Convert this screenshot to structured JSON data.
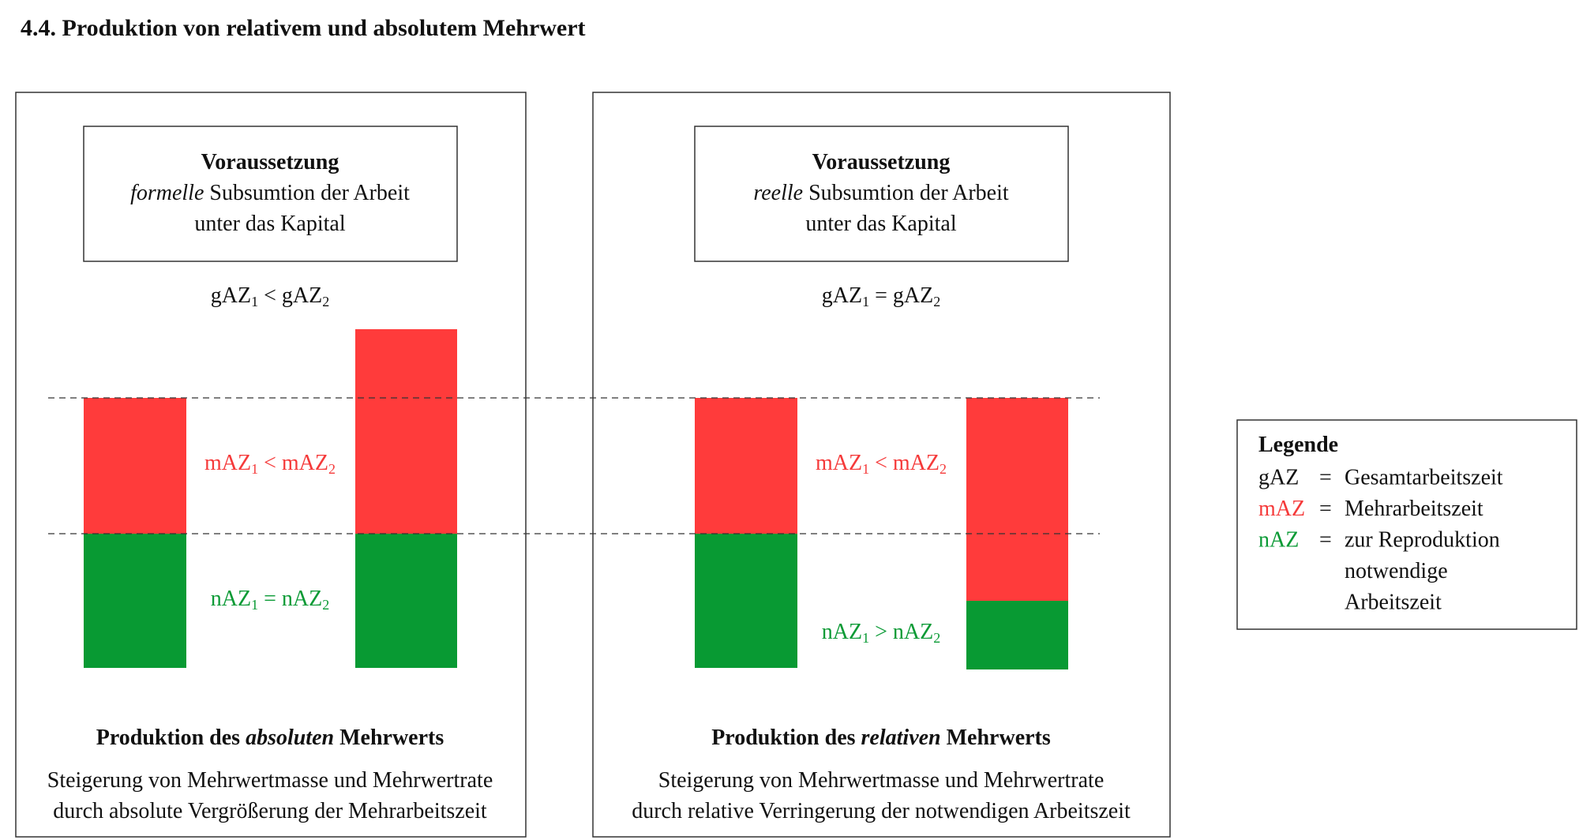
{
  "title": "4.4. Produktion von relativem und absolutem Mehrwert",
  "panels": [
    {
      "premise": {
        "heading": "Voraussetzung",
        "emphasis": "formelle",
        "line1_rest": "Subsumtion der Arbeit",
        "line2": "unter das Kapital"
      },
      "relations": {
        "total": {
          "left": "gAZ",
          "left_index": "1",
          "operator": "<",
          "right": "gAZ",
          "right_index": "2"
        },
        "surplus": {
          "left": "mAZ",
          "left_index": "1",
          "operator": "<",
          "right": "mAZ",
          "right_index": "2"
        },
        "necessary": {
          "left": "nAZ",
          "left_index": "1",
          "operator": "=",
          "right": "nAZ",
          "right_index": "2"
        }
      },
      "caption": {
        "heading_start": "Produktion des",
        "heading_emphasis": "absoluten",
        "heading_end": "Mehrwerts",
        "lines": [
          "Steigerung von Mehrwertmasse und Mehrwertrate",
          "durch absolute Vergrößerung der Mehrarbeitszeit"
        ]
      }
    },
    {
      "premise": {
        "heading": "Voraussetzung",
        "emphasis": "reelle",
        "line1_rest": "Subsumtion der Arbeit",
        "line2": "unter das Kapital"
      },
      "relations": {
        "total": {
          "left": "gAZ",
          "left_index": "1",
          "operator": "=",
          "right": "gAZ",
          "right_index": "2"
        },
        "surplus": {
          "left": "mAZ",
          "left_index": "1",
          "operator": "<",
          "right": "mAZ",
          "right_index": "2"
        },
        "necessary": {
          "left": "nAZ",
          "left_index": "1",
          "operator": ">",
          "right": "nAZ",
          "right_index": "2"
        }
      },
      "caption": {
        "heading_start": "Produktion des",
        "heading_emphasis": "relativen",
        "heading_end": "Mehrwerts",
        "lines": [
          "Steigerung von Mehrwertmasse und Mehrwertrate",
          "durch relative Verringerung der notwendigen Arbeitszeit"
        ]
      }
    }
  ],
  "legend": {
    "title": "Legende",
    "entries": [
      {
        "term": "gAZ",
        "sign": "=",
        "definition": [
          "Gesamtarbeitszeit"
        ]
      },
      {
        "term": "mAZ",
        "sign": "=",
        "definition": [
          "Mehrarbeitszeit"
        ]
      },
      {
        "term": "nAZ",
        "sign": "=",
        "definition": [
          "zur Reproduktion",
          "notwendige",
          "Arbeitszeit"
        ]
      }
    ]
  }
}
